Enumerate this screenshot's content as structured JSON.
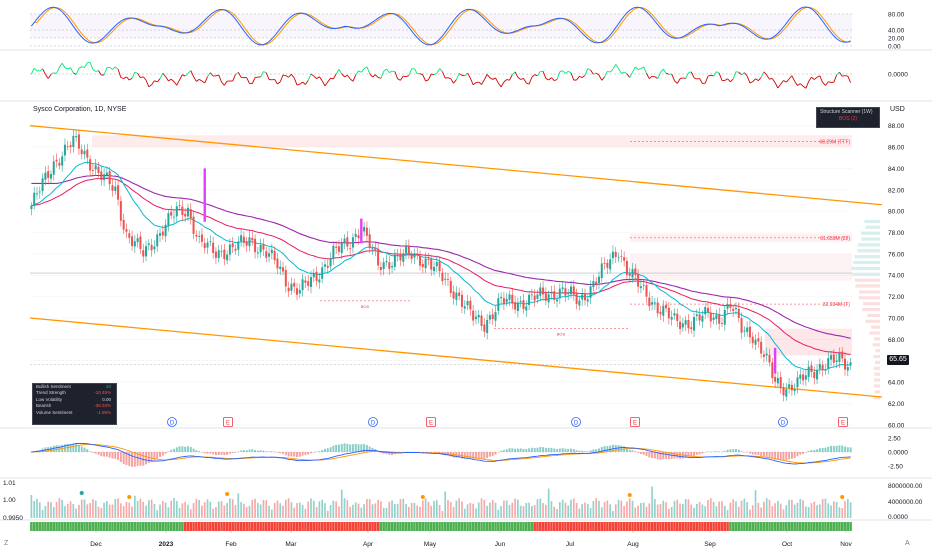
{
  "title": "Sysco Corporation, 1D, NYSE",
  "currency": "USD",
  "current_price_label": "65.65",
  "scanner": {
    "header": "Structure Scanner (1W)",
    "value": "BOS (2)"
  },
  "metrics": [
    {
      "label": "Bullish Sentiment",
      "value": "20"
    },
    {
      "label": "Trend Strength",
      "value": "-10.45%"
    },
    {
      "label": "Low Volatility",
      "value": "0.00"
    },
    {
      "label": "Bearish",
      "value": "-38.33%"
    },
    {
      "label": "Volume Sentiment",
      "value": "-1.95%"
    }
  ],
  "corner_left": "Z",
  "corner_right": "A",
  "colors": {
    "up": "#26a69a",
    "down": "#ef5350",
    "ema20": "#00bcd4",
    "ema50": "#e91e63",
    "ema200": "#9c27b0",
    "channel": "#ff9800",
    "macd": "#2962ff",
    "signal": "#ff9800",
    "bull_bar": "#4caf50",
    "bear_bar": "#f44336"
  },
  "chart_data": [
    {
      "type": "line",
      "name": "Stochastic RSI",
      "y_ticks": [
        "80.00",
        "40.00",
        "20.00",
        "0.00"
      ],
      "ylim": [
        -5,
        105
      ]
    },
    {
      "type": "line",
      "name": "Momentum oscillator",
      "y_ticks": [
        "0.0000"
      ]
    },
    {
      "type": "candlestick",
      "title": "Sysco Corporation, 1D, NYSE",
      "x_tick_labels": [
        "Dec",
        "2023",
        "Feb",
        "Mar",
        "Apr",
        "May",
        "Jun",
        "Jul",
        "Aug",
        "Sep",
        "Oct",
        "Nov"
      ],
      "y_tick_labels": [
        "88.00",
        "86.00",
        "84.00",
        "82.00",
        "80.00",
        "78.00",
        "76.00",
        "74.00",
        "72.00",
        "70.00",
        "68.00",
        "66.00",
        "64.00",
        "62.00",
        "60.00"
      ],
      "ylim": [
        59.7,
        89.0
      ],
      "current_price": 65.65,
      "approx_close_path": [
        [
          0,
          80.5
        ],
        [
          8,
          84.5
        ],
        [
          15,
          86.5
        ],
        [
          18,
          85.8
        ],
        [
          24,
          83.5
        ],
        [
          30,
          82.0
        ],
        [
          34,
          77.8
        ],
        [
          40,
          76.0
        ],
        [
          46,
          78.0
        ],
        [
          52,
          80.0
        ],
        [
          56,
          80.2
        ],
        [
          60,
          77.0
        ],
        [
          66,
          76.2
        ],
        [
          72,
          76.4
        ],
        [
          78,
          77.4
        ],
        [
          82,
          76.5
        ],
        [
          88,
          75.0
        ],
        [
          92,
          73.2
        ],
        [
          96,
          72.5
        ],
        [
          102,
          74.0
        ],
        [
          108,
          76.0
        ],
        [
          114,
          77.2
        ],
        [
          118,
          78.5
        ],
        [
          124,
          75.0
        ],
        [
          130,
          75.5
        ],
        [
          136,
          76.0
        ],
        [
          142,
          75.2
        ],
        [
          148,
          73.5
        ],
        [
          152,
          72.3
        ],
        [
          158,
          70.0
        ],
        [
          162,
          69.5
        ],
        [
          168,
          71.5
        ],
        [
          176,
          71.5
        ],
        [
          184,
          72.2
        ],
        [
          190,
          72.5
        ],
        [
          196,
          71.6
        ],
        [
          202,
          73.5
        ],
        [
          206,
          75.0
        ],
        [
          210,
          76.5
        ],
        [
          213,
          74.5
        ],
        [
          218,
          72.8
        ],
        [
          224,
          71.0
        ],
        [
          230,
          69.7
        ],
        [
          236,
          69.6
        ],
        [
          242,
          70.3
        ],
        [
          246,
          70.0
        ],
        [
          250,
          71.2
        ],
        [
          254,
          69.0
        ],
        [
          258,
          68.5
        ],
        [
          262,
          66.5
        ],
        [
          266,
          64.0
        ],
        [
          270,
          63.5
        ],
        [
          274,
          63.8
        ],
        [
          278,
          64.8
        ],
        [
          282,
          65.5
        ],
        [
          286,
          65.9
        ],
        [
          290,
          66.0
        ],
        [
          292,
          65.65
        ]
      ],
      "series_names": [
        "EMA 20",
        "EMA 50",
        "EMA 200"
      ],
      "levels": [
        {
          "label": "68.29M (TTT)",
          "price": 86.5
        },
        {
          "label": "61.659M (22)",
          "price": 77.5
        },
        {
          "label": "32.934M (T)",
          "price": 71.3
        }
      ],
      "markers": [
        {
          "label": "BOS",
          "price": 71.6
        },
        {
          "label": "BOS",
          "price": 69.0
        }
      ],
      "events": [
        "D",
        "E",
        "D",
        "E",
        "D",
        "E",
        "D",
        "E"
      ],
      "channel": {
        "upper": [
          [
            0,
            88.0
          ],
          [
            293,
            80.6
          ]
        ],
        "lower": [
          [
            0,
            70.0
          ],
          [
            293,
            62.6
          ]
        ]
      }
    },
    {
      "type": "bar",
      "name": "MACD",
      "y_ticks": [
        "2.50",
        "0.0000",
        "-2.50"
      ]
    },
    {
      "type": "bar",
      "name": "Volume",
      "y_ticks_left": [
        "1.01",
        "1.00",
        "0.9950"
      ],
      "y_ticks_right": [
        "8000000.00",
        "4000000.00",
        "0.0000"
      ]
    }
  ]
}
